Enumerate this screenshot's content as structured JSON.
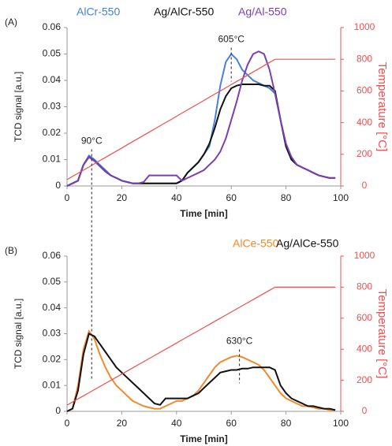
{
  "chart_data": [
    {
      "type": "line",
      "label": "(A)",
      "xlabel": "Time [min]",
      "ylabel": "TCD signal [a.u.]",
      "y2label": "Temperature [°C]",
      "xlim": [
        0,
        100
      ],
      "xticks": [
        0,
        20,
        40,
        60,
        80,
        100
      ],
      "ylim": [
        0,
        0.06
      ],
      "yticks": [
        0,
        0.01,
        0.02,
        0.03,
        0.04,
        0.05,
        0.06
      ],
      "y2lim": [
        0,
        1000
      ],
      "y2ticks": [
        0,
        200,
        400,
        600,
        800,
        1000
      ],
      "x": [
        0,
        2,
        4,
        6,
        8,
        10,
        12,
        14,
        16,
        18,
        20,
        22,
        24,
        26,
        28,
        30,
        32,
        34,
        36,
        38,
        40,
        42,
        44,
        46,
        48,
        50,
        52,
        54,
        56,
        58,
        60,
        62,
        64,
        66,
        68,
        70,
        72,
        74,
        76,
        78,
        80,
        82,
        84,
        86,
        88,
        90,
        92,
        94,
        96,
        98
      ],
      "series": [
        {
          "name": "AlCr-550",
          "color": "#4a7fd4",
          "values": [
            0,
            0.001,
            0.002,
            0.008,
            0.0115,
            0.01,
            0.008,
            0.006,
            0.004,
            0.003,
            0.002,
            0.0015,
            0.001,
            0.001,
            0.001,
            0.001,
            0.001,
            0.001,
            0.001,
            0.001,
            0.001,
            0.002,
            0.005,
            0.007,
            0.009,
            0.012,
            0.015,
            0.025,
            0.038,
            0.047,
            0.05,
            0.048,
            0.044,
            0.042,
            0.04,
            0.039,
            0.038,
            0.037,
            0.035,
            0.025,
            0.015,
            0.01,
            0.008,
            0.007,
            0.006,
            0.005,
            0.004,
            0.0035,
            0.003,
            0.003
          ]
        },
        {
          "name": "Ag/AlCr-550",
          "color": "#111111",
          "values": [
            0,
            0.001,
            0.002,
            0.008,
            0.011,
            0.0095,
            0.0075,
            0.0055,
            0.004,
            0.003,
            0.002,
            0.0015,
            0.001,
            0.001,
            0.001,
            0.001,
            0.001,
            0.001,
            0.001,
            0.001,
            0.001,
            0.002,
            0.005,
            0.007,
            0.009,
            0.012,
            0.016,
            0.022,
            0.029,
            0.034,
            0.037,
            0.038,
            0.0385,
            0.0385,
            0.0385,
            0.0385,
            0.038,
            0.038,
            0.036,
            0.025,
            0.015,
            0.01,
            0.008,
            0.007,
            0.006,
            0.005,
            0.004,
            0.0035,
            0.003,
            0.003
          ]
        },
        {
          "name": "Ag/Al-550",
          "color": "#7a3fb0",
          "values": [
            0,
            0.001,
            0.002,
            0.008,
            0.011,
            0.0095,
            0.0075,
            0.0055,
            0.004,
            0.003,
            0.002,
            0.0015,
            0.001,
            0.001,
            0.0015,
            0.004,
            0.004,
            0.004,
            0.004,
            0.004,
            0.004,
            0.002,
            0.003,
            0.004,
            0.005,
            0.006,
            0.008,
            0.01,
            0.013,
            0.018,
            0.025,
            0.032,
            0.04,
            0.046,
            0.05,
            0.051,
            0.05,
            0.044,
            0.035,
            0.025,
            0.016,
            0.011,
            0.008,
            0.007,
            0.006,
            0.005,
            0.004,
            0.0035,
            0.003,
            0.003
          ]
        },
        {
          "color": "#f05050",
          "axis": "y2",
          "values": [
            40,
            60,
            80,
            100,
            120,
            140,
            160,
            180,
            200,
            220,
            240,
            260,
            280,
            300,
            320,
            340,
            360,
            380,
            400,
            420,
            440,
            460,
            480,
            500,
            520,
            540,
            560,
            580,
            600,
            620,
            640,
            660,
            680,
            700,
            720,
            740,
            760,
            780,
            800,
            800,
            800,
            800,
            800,
            800,
            800,
            800,
            800,
            800,
            800,
            800
          ]
        }
      ],
      "annotations": [
        {
          "text": "90°C",
          "x": 9,
          "y": 0.0115
        },
        {
          "text": "605°C",
          "x": 60,
          "y": 0.05
        }
      ]
    },
    {
      "type": "line",
      "label": "(B)",
      "xlabel": "Time [min]",
      "ylabel": "TCD signal [a.u.]",
      "y2label": "Temperature [°C]",
      "xlim": [
        0,
        100
      ],
      "xticks": [
        0,
        20,
        40,
        60,
        80,
        100
      ],
      "ylim": [
        0,
        0.06
      ],
      "yticks": [
        0,
        0.01,
        0.02,
        0.03,
        0.04,
        0.05,
        0.06
      ],
      "y2lim": [
        0,
        1000
      ],
      "y2ticks": [
        0,
        200,
        400,
        600,
        800,
        1000
      ],
      "x": [
        0,
        2,
        4,
        6,
        8,
        10,
        12,
        14,
        16,
        18,
        20,
        22,
        24,
        26,
        28,
        30,
        32,
        34,
        36,
        38,
        40,
        42,
        44,
        46,
        48,
        50,
        52,
        54,
        56,
        58,
        60,
        62,
        64,
        66,
        68,
        70,
        72,
        74,
        76,
        78,
        80,
        82,
        84,
        86,
        88,
        90,
        92,
        94,
        96,
        98
      ],
      "series": [
        {
          "name": "AlCe-550",
          "color": "#ef8a2e",
          "values": [
            0,
            0.001,
            0.01,
            0.024,
            0.031,
            0.028,
            0.022,
            0.017,
            0.013,
            0.01,
            0.008,
            0.006,
            0.004,
            0.003,
            0.002,
            0.0015,
            0.001,
            0.001,
            0.002,
            0.003,
            0.004,
            0.004,
            0.005,
            0.006,
            0.008,
            0.011,
            0.014,
            0.017,
            0.019,
            0.02,
            0.021,
            0.0215,
            0.021,
            0.02,
            0.019,
            0.018,
            0.016,
            0.013,
            0.01,
            0.007,
            0.005,
            0.004,
            0.003,
            0.002,
            0.002,
            0.0015,
            0.001,
            0.001,
            0.0005,
            0.0005
          ]
        },
        {
          "name": "Ag/AlCe-550",
          "color": "#111111",
          "values": [
            0,
            0.001,
            0.008,
            0.022,
            0.03,
            0.029,
            0.026,
            0.023,
            0.02,
            0.017,
            0.015,
            0.013,
            0.011,
            0.009,
            0.007,
            0.005,
            0.003,
            0.0025,
            0.005,
            0.005,
            0.005,
            0.005,
            0.005,
            0.006,
            0.007,
            0.009,
            0.011,
            0.013,
            0.015,
            0.0155,
            0.016,
            0.016,
            0.0165,
            0.0165,
            0.017,
            0.017,
            0.017,
            0.017,
            0.016,
            0.01,
            0.007,
            0.005,
            0.004,
            0.003,
            0.002,
            0.002,
            0.0015,
            0.001,
            0.001,
            0.0005
          ]
        },
        {
          "color": "#f05050",
          "axis": "y2",
          "values": [
            40,
            60,
            80,
            100,
            120,
            140,
            160,
            180,
            200,
            220,
            240,
            260,
            280,
            300,
            320,
            340,
            360,
            380,
            400,
            420,
            440,
            460,
            480,
            500,
            520,
            540,
            560,
            580,
            600,
            620,
            640,
            660,
            680,
            700,
            720,
            740,
            760,
            780,
            800,
            800,
            800,
            800,
            800,
            800,
            800,
            800,
            800,
            800,
            800,
            800
          ]
        }
      ],
      "annotations": [
        {
          "text": "630°C",
          "x": 63,
          "y": 0.0215
        }
      ]
    }
  ]
}
